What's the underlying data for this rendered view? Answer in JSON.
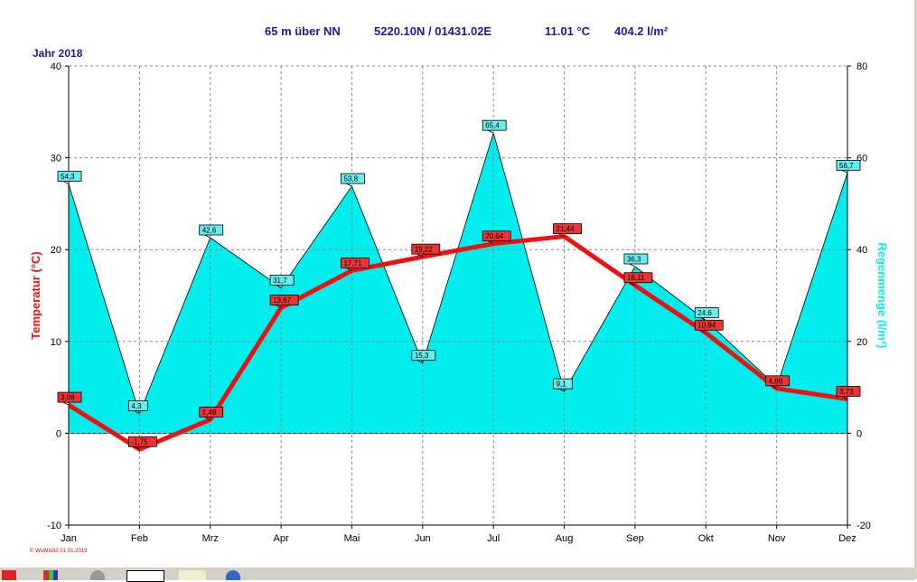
{
  "header": {
    "elevation": "65 m über NN",
    "coordinates": "5220.10N / 01431.02E",
    "mean_temp": "11.01 °C",
    "total_rain": "404.2 l/m²"
  },
  "year_label": "Jahr 2018",
  "footer_credit": "© WsWin32 01.01.2019",
  "colors": {
    "temperature": "#ee1111",
    "rain_fill": "#00eeee",
    "temp_label_bg": "#ee3333",
    "rain_label_bg": "#66eeee",
    "header_text": "#1a1aa6",
    "grid": "#888888"
  },
  "taskbar": {
    "icons": [
      "app-icon",
      "flag-icon",
      "gear-icon",
      "sun-icon",
      "chart-icon",
      "globe-icon"
    ]
  },
  "chart_data": {
    "type": "line",
    "categories": [
      "Jan",
      "Feb",
      "Mrz",
      "Apr",
      "Mai",
      "Jun",
      "Jul",
      "Aug",
      "Sep",
      "Okt",
      "Nov",
      "Dez"
    ],
    "series": [
      {
        "axis": "left",
        "kind": "line",
        "values": [
          3.08,
          -1.75,
          1.48,
          13.67,
          17.71,
          19.22,
          20.64,
          21.44,
          16.11,
          10.94,
          4.88,
          3.73
        ],
        "labels": [
          "3,08",
          "-1,75",
          "1,48",
          "13,67",
          "17,71",
          "19,22",
          "20,64",
          "21,44",
          "16,11",
          "10,94",
          "4,88",
          "3,73"
        ]
      },
      {
        "axis": "right",
        "kind": "area",
        "values": [
          54.3,
          4.3,
          42.6,
          31.7,
          53.8,
          15.3,
          65.4,
          9.1,
          36.3,
          24.6,
          10.2,
          56.7
        ],
        "labels": [
          "54,3",
          "4,3",
          "42,6",
          "31,7",
          "53,8",
          "15,3",
          "65,4",
          "9,1",
          "36,3",
          "24,6",
          "",
          "56,7"
        ]
      }
    ],
    "ylabel_left": "Temperatur (°C)",
    "ylabel_right": "Regenmenge (l/m²)",
    "ylim_left": [
      -10,
      40
    ],
    "ylim_right": [
      -20,
      80
    ],
    "yticks_left": [
      "-10",
      "0",
      "10",
      "20",
      "30",
      "40"
    ],
    "yticks_right": [
      "-20",
      "0",
      "20",
      "40",
      "60",
      "80"
    ],
    "grid": true
  }
}
